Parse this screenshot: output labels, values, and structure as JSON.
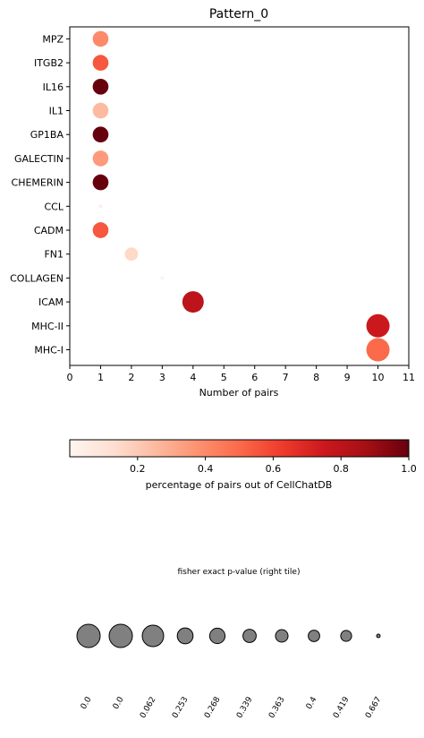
{
  "chart_data": [
    {
      "type": "scatter",
      "title": "Pattern_0",
      "xlabel": "Number of pairs",
      "ylabel": "",
      "xlim": [
        0,
        11
      ],
      "xticks": [
        0,
        1,
        2,
        3,
        4,
        5,
        6,
        7,
        8,
        9,
        10,
        11
      ],
      "categories": [
        "MPZ",
        "ITGB2",
        "IL16",
        "IL1",
        "GP1BA",
        "GALECTIN",
        "CHEMERIN",
        "CCL",
        "CADM",
        "FN1",
        "COLLAGEN",
        "ICAM",
        "MHC-II",
        "MHC-I"
      ],
      "points": [
        {
          "category": "MPZ",
          "x": 1,
          "color_value": 0.4,
          "pvalue": 0.253
        },
        {
          "category": "ITGB2",
          "x": 1,
          "color_value": 0.55,
          "pvalue": 0.253
        },
        {
          "category": "IL16",
          "x": 1,
          "color_value": 1.0,
          "pvalue": 0.253
        },
        {
          "category": "IL1",
          "x": 1,
          "color_value": 0.25,
          "pvalue": 0.253
        },
        {
          "category": "GP1BA",
          "x": 1,
          "color_value": 1.0,
          "pvalue": 0.253
        },
        {
          "category": "GALECTIN",
          "x": 1,
          "color_value": 0.35,
          "pvalue": 0.253
        },
        {
          "category": "CHEMERIN",
          "x": 1,
          "color_value": 1.0,
          "pvalue": 0.253
        },
        {
          "category": "CCL",
          "x": 1,
          "color_value": 0.05,
          "pvalue": 0.667
        },
        {
          "category": "CADM",
          "x": 1,
          "color_value": 0.55,
          "pvalue": 0.253
        },
        {
          "category": "FN1",
          "x": 2,
          "color_value": 0.15,
          "pvalue": 0.339
        },
        {
          "category": "COLLAGEN",
          "x": 3,
          "color_value": 0.02,
          "pvalue": 0.667
        },
        {
          "category": "ICAM",
          "x": 4,
          "color_value": 0.8,
          "pvalue": 0.062
        },
        {
          "category": "MHC-II",
          "x": 10,
          "color_value": 0.75,
          "pvalue": 0.0
        },
        {
          "category": "MHC-I",
          "x": 10,
          "color_value": 0.5,
          "pvalue": 0.0
        }
      ]
    },
    {
      "type": "colorbar",
      "label": "percentage of pairs out of CellChatDB",
      "range": [
        0,
        1
      ],
      "ticks": [
        0.2,
        0.4,
        0.6,
        0.8,
        1.0
      ],
      "tick_labels": [
        "0.2",
        "0.4",
        "0.6",
        "0.8",
        "1.0"
      ],
      "colormap": "Reds"
    },
    {
      "type": "size-legend",
      "title": "fisher exact p-value (right tile)",
      "labels": [
        "0.0",
        "0.0",
        "0.062",
        "0.253",
        "0.268",
        "0.339",
        "0.363",
        "0.4",
        "0.419",
        "0.667"
      ],
      "values": [
        0.0,
        0.0,
        0.062,
        0.253,
        0.268,
        0.339,
        0.363,
        0.4,
        0.419,
        0.667
      ],
      "marker_color": "#808080"
    }
  ]
}
